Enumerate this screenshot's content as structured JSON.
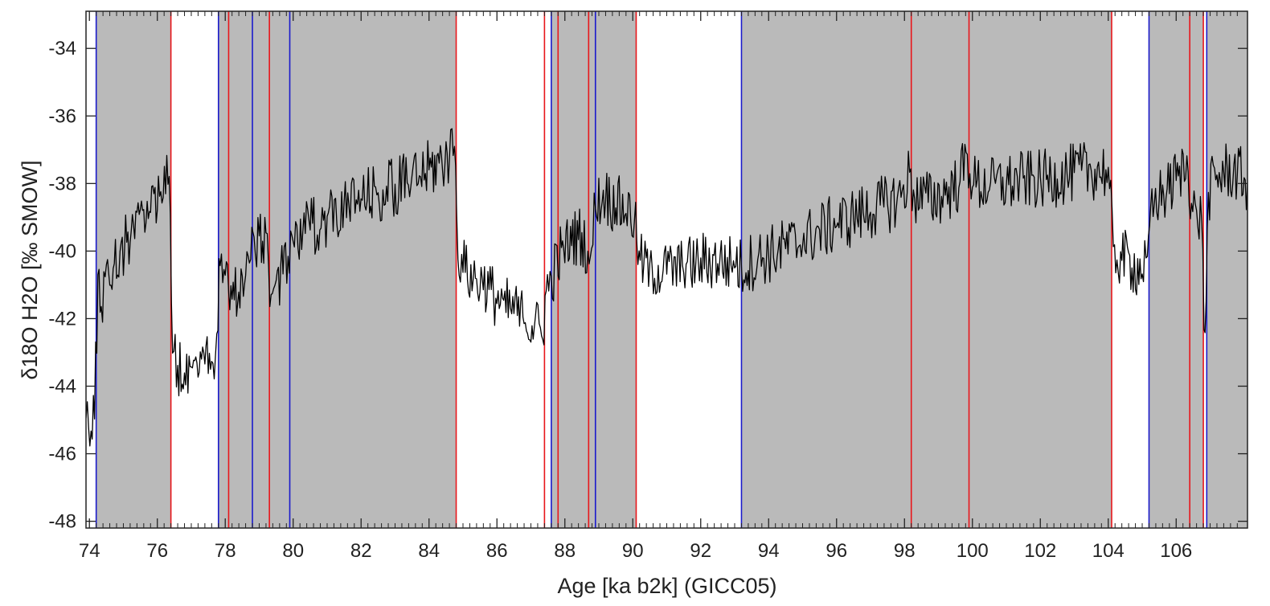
{
  "chart_data": {
    "type": "line",
    "title": "",
    "xlabel": "Age [ka b2k] (GICC05)",
    "ylabel": "δ18O H2O [‰ SMOW]",
    "xlim": [
      73.9,
      108.1
    ],
    "ylim": [
      -48.2,
      -32.9
    ],
    "x_ticks": [
      74,
      76,
      78,
      80,
      82,
      84,
      86,
      88,
      90,
      92,
      94,
      96,
      98,
      100,
      102,
      104,
      106
    ],
    "x_tick_labels": [
      "74",
      "76",
      "78",
      "80",
      "82",
      "84",
      "86",
      "88",
      "90",
      "92",
      "94",
      "96",
      "98",
      "100",
      "102",
      "104",
      "106"
    ],
    "y_ticks": [
      -34,
      -36,
      -38,
      -40,
      -42,
      -44,
      -46,
      -48
    ],
    "y_tick_labels": [
      "-34",
      "-36",
      "-38",
      "-40",
      "-42",
      "-44",
      "-46",
      "-48"
    ],
    "grid": false,
    "legend": "none",
    "colors": {
      "series": "#000000",
      "shade": "#bababa",
      "red_marker": "#e8161b",
      "blue_marker": "#1a1acc",
      "axis": "#222222"
    },
    "shaded_intervals": [
      [
        74.2,
        76.4
      ],
      [
        77.8,
        84.8
      ],
      [
        87.6,
        90.1
      ],
      [
        93.2,
        104.1
      ],
      [
        105.2,
        106.8
      ],
      [
        106.9,
        108.1
      ]
    ],
    "red_lines": [
      76.4,
      78.1,
      79.3,
      84.8,
      87.4,
      87.8,
      88.7,
      90.1,
      98.2,
      99.9,
      104.1,
      106.4,
      106.8
    ],
    "blue_lines": [
      74.2,
      77.8,
      78.8,
      79.9,
      87.6,
      88.9,
      93.2,
      105.2,
      106.9
    ],
    "series": [
      {
        "points": [
          [
            73.9,
            -44.8
          ],
          [
            74.05,
            -45.4
          ],
          [
            74.15,
            -44.9
          ],
          [
            74.25,
            -40.8
          ],
          [
            74.35,
            -41.6
          ],
          [
            74.5,
            -40.4
          ],
          [
            74.7,
            -40.6
          ],
          [
            74.9,
            -40.0
          ],
          [
            75.1,
            -39.7
          ],
          [
            75.3,
            -39.2
          ],
          [
            75.5,
            -38.9
          ],
          [
            75.7,
            -38.6
          ],
          [
            75.9,
            -38.4
          ],
          [
            76.1,
            -38.1
          ],
          [
            76.35,
            -37.9
          ],
          [
            76.45,
            -43.0
          ],
          [
            76.6,
            -43.4
          ],
          [
            76.8,
            -43.5
          ],
          [
            77.0,
            -43.3
          ],
          [
            77.2,
            -43.6
          ],
          [
            77.4,
            -43.2
          ],
          [
            77.6,
            -43.4
          ],
          [
            77.75,
            -42.4
          ],
          [
            77.85,
            -40.4
          ],
          [
            78.0,
            -40.7
          ],
          [
            78.2,
            -41.4
          ],
          [
            78.4,
            -41.1
          ],
          [
            78.6,
            -40.7
          ],
          [
            78.75,
            -40.2
          ],
          [
            78.85,
            -39.6
          ],
          [
            79.0,
            -39.7
          ],
          [
            79.2,
            -39.5
          ],
          [
            79.35,
            -41.2
          ],
          [
            79.5,
            -41.0
          ],
          [
            79.7,
            -40.6
          ],
          [
            79.85,
            -40.3
          ],
          [
            80.0,
            -39.7
          ],
          [
            80.5,
            -39.3
          ],
          [
            81.0,
            -39.0
          ],
          [
            81.5,
            -38.7
          ],
          [
            82.0,
            -38.5
          ],
          [
            82.5,
            -38.3
          ],
          [
            83.0,
            -38.1
          ],
          [
            83.5,
            -37.9
          ],
          [
            84.0,
            -37.6
          ],
          [
            84.3,
            -37.4
          ],
          [
            84.6,
            -37.2
          ],
          [
            84.75,
            -36.8
          ],
          [
            84.85,
            -40.1
          ],
          [
            85.0,
            -40.5
          ],
          [
            85.3,
            -40.8
          ],
          [
            85.6,
            -41.0
          ],
          [
            85.9,
            -41.3
          ],
          [
            86.2,
            -41.6
          ],
          [
            86.5,
            -41.8
          ],
          [
            86.8,
            -42.0
          ],
          [
            87.1,
            -42.2
          ],
          [
            87.35,
            -42.5
          ],
          [
            87.45,
            -41.2
          ],
          [
            87.6,
            -40.8
          ],
          [
            87.9,
            -40.0
          ],
          [
            88.2,
            -39.7
          ],
          [
            88.5,
            -39.5
          ],
          [
            88.75,
            -40.3
          ],
          [
            88.9,
            -38.6
          ],
          [
            89.2,
            -38.4
          ],
          [
            89.5,
            -38.6
          ],
          [
            89.8,
            -38.8
          ],
          [
            90.05,
            -39.0
          ],
          [
            90.15,
            -40.3
          ],
          [
            90.5,
            -40.5
          ],
          [
            91.0,
            -40.6
          ],
          [
            91.5,
            -40.5
          ],
          [
            92.0,
            -40.3
          ],
          [
            92.5,
            -40.3
          ],
          [
            93.0,
            -40.4
          ],
          [
            93.2,
            -40.5
          ],
          [
            93.5,
            -40.3
          ],
          [
            94.0,
            -40.1
          ],
          [
            94.5,
            -39.9
          ],
          [
            95.0,
            -39.7
          ],
          [
            95.5,
            -39.4
          ],
          [
            96.0,
            -39.2
          ],
          [
            96.5,
            -39.0
          ],
          [
            97.0,
            -38.8
          ],
          [
            97.5,
            -38.6
          ],
          [
            97.9,
            -38.4
          ],
          [
            98.15,
            -37.7
          ],
          [
            98.3,
            -38.4
          ],
          [
            98.7,
            -38.5
          ],
          [
            99.2,
            -38.3
          ],
          [
            99.6,
            -38.0
          ],
          [
            99.85,
            -37.2
          ],
          [
            100.0,
            -38.0
          ],
          [
            100.5,
            -38.1
          ],
          [
            101.0,
            -38.0
          ],
          [
            101.5,
            -37.9
          ],
          [
            102.0,
            -37.9
          ],
          [
            102.5,
            -37.8
          ],
          [
            103.0,
            -37.7
          ],
          [
            103.5,
            -37.6
          ],
          [
            104.0,
            -37.6
          ],
          [
            104.15,
            -40.0
          ],
          [
            104.4,
            -40.2
          ],
          [
            104.7,
            -40.4
          ],
          [
            105.0,
            -40.6
          ],
          [
            105.15,
            -40.3
          ],
          [
            105.25,
            -38.8
          ],
          [
            105.5,
            -38.4
          ],
          [
            105.8,
            -38.2
          ],
          [
            106.1,
            -37.6
          ],
          [
            106.35,
            -37.5
          ],
          [
            106.45,
            -38.6
          ],
          [
            106.6,
            -38.9
          ],
          [
            106.75,
            -39.0
          ],
          [
            106.82,
            -42.3
          ],
          [
            106.88,
            -41.5
          ],
          [
            106.95,
            -38.3
          ],
          [
            107.2,
            -37.8
          ],
          [
            107.5,
            -37.6
          ],
          [
            107.8,
            -37.7
          ],
          [
            108.1,
            -38.0
          ]
        ]
      }
    ]
  }
}
